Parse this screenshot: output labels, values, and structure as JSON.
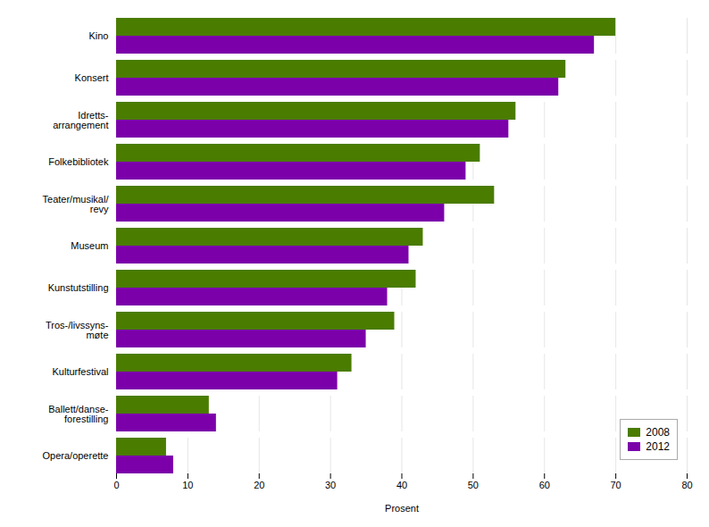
{
  "chart_data": {
    "type": "bar",
    "orientation": "horizontal",
    "categories": [
      "Kino",
      "Konsert",
      "Idretts-\narrangement",
      "Folkebibliotek",
      "Teater/musikal/\nrevy",
      "Museum",
      "Kunstutstilling",
      "Tros-/livssyns-\nmøte",
      "Kulturfestival",
      "Ballett/danse-\nforestilling",
      "Opera/operette"
    ],
    "series": [
      {
        "name": "2008",
        "color": "#4a7c00",
        "values": [
          70,
          63,
          56,
          51,
          53,
          43,
          42,
          39,
          33,
          13,
          7
        ]
      },
      {
        "name": "2012",
        "color": "#7b00aa",
        "values": [
          67,
          62,
          55,
          49,
          46,
          41,
          38,
          35,
          31,
          14,
          8
        ]
      }
    ],
    "xlabel": "Prosent",
    "xlim": [
      0,
      80
    ],
    "xticks": [
      0,
      10,
      20,
      30,
      40,
      50,
      60,
      70,
      80
    ],
    "grid": true,
    "legend": "lower right"
  }
}
